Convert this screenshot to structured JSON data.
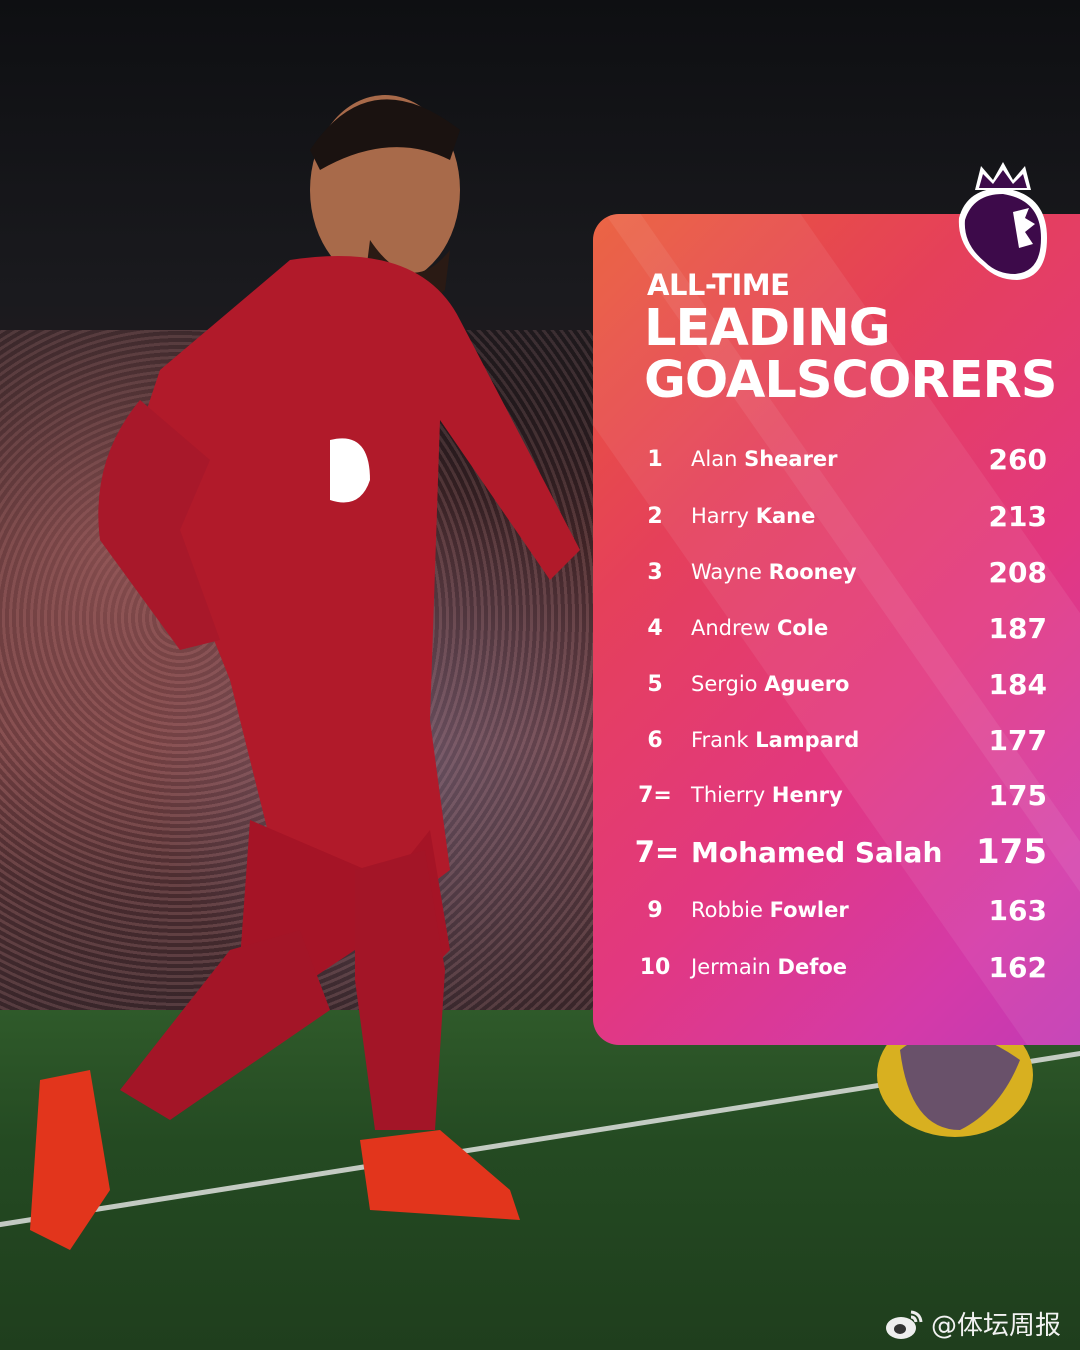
{
  "header": {
    "line1": "ALL-TIME",
    "line2": "LEADING",
    "line3": "GOALSCORERS"
  },
  "logo": "premier-league-lion-logo",
  "rows": [
    {
      "rank": "1",
      "first": "Alan",
      "last": "Shearer",
      "goals": "260"
    },
    {
      "rank": "2",
      "first": "Harry",
      "last": "Kane",
      "goals": "213"
    },
    {
      "rank": "3",
      "first": "Wayne",
      "last": "Rooney",
      "goals": "208"
    },
    {
      "rank": "4",
      "first": "Andrew",
      "last": "Cole",
      "goals": "187"
    },
    {
      "rank": "5",
      "first": "Sergio",
      "last": "Aguero",
      "goals": "184"
    },
    {
      "rank": "6",
      "first": "Frank",
      "last": "Lampard",
      "goals": "177"
    },
    {
      "rank": "7=",
      "first": "Thierry",
      "last": "Henry",
      "goals": "175"
    },
    {
      "rank": "7=",
      "first": "Mohamed",
      "last": "Salah",
      "goals": "175",
      "highlight": true
    },
    {
      "rank": "9",
      "first": "Robbie",
      "last": "Fowler",
      "goals": "163"
    },
    {
      "rank": "10",
      "first": "Jermain",
      "last": "Defoe",
      "goals": "162"
    }
  ],
  "watermark": "@体坛周报",
  "colors": {
    "panel_start": "#ea5a36",
    "panel_end": "#c23ab4",
    "logo": "#3d0a4a"
  }
}
